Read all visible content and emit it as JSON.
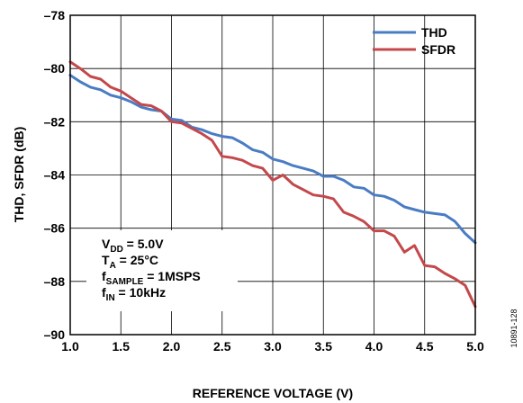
{
  "chart_data": {
    "type": "line",
    "xlabel": "REFERENCE VOLTAGE (V)",
    "ylabel": "THD, SFDR (dB)",
    "xlim": [
      1.0,
      5.0
    ],
    "ylim": [
      -90,
      -78
    ],
    "x_ticks": [
      "1.0",
      "1.5",
      "2.0",
      "2.5",
      "3.0",
      "3.5",
      "4.0",
      "4.5",
      "5.0"
    ],
    "y_ticks": [
      "–78",
      "–80",
      "–82",
      "–84",
      "–86",
      "–88",
      "–90"
    ],
    "grid": true,
    "legend_position": "top-right",
    "series": [
      {
        "name": "THD",
        "color": "#4a7cc4",
        "x": [
          1.0,
          1.1,
          1.2,
          1.3,
          1.4,
          1.5,
          1.6,
          1.7,
          1.8,
          1.9,
          2.0,
          2.1,
          2.2,
          2.3,
          2.4,
          2.5,
          2.6,
          2.7,
          2.8,
          2.9,
          3.0,
          3.1,
          3.2,
          3.3,
          3.4,
          3.5,
          3.6,
          3.7,
          3.8,
          3.9,
          4.0,
          4.1,
          4.2,
          4.3,
          4.4,
          4.5,
          4.6,
          4.7,
          4.8,
          4.9,
          5.0
        ],
        "values": [
          -80.25,
          -80.5,
          -80.7,
          -80.8,
          -81.0,
          -81.1,
          -81.25,
          -81.45,
          -81.55,
          -81.6,
          -81.9,
          -81.95,
          -82.2,
          -82.3,
          -82.45,
          -82.55,
          -82.6,
          -82.8,
          -83.05,
          -83.15,
          -83.4,
          -83.5,
          -83.65,
          -83.75,
          -83.85,
          -84.05,
          -84.05,
          -84.2,
          -84.45,
          -84.5,
          -84.75,
          -84.8,
          -84.95,
          -85.2,
          -85.3,
          -85.4,
          -85.45,
          -85.5,
          -85.75,
          -86.2,
          -86.55
        ]
      },
      {
        "name": "SFDR",
        "color": "#c4484b",
        "x": [
          1.0,
          1.1,
          1.2,
          1.3,
          1.4,
          1.5,
          1.6,
          1.7,
          1.8,
          1.9,
          2.0,
          2.1,
          2.2,
          2.3,
          2.4,
          2.5,
          2.6,
          2.7,
          2.8,
          2.9,
          3.0,
          3.1,
          3.2,
          3.3,
          3.4,
          3.5,
          3.6,
          3.7,
          3.8,
          3.9,
          4.0,
          4.1,
          4.2,
          4.3,
          4.4,
          4.5,
          4.6,
          4.7,
          4.8,
          4.9,
          5.0
        ],
        "values": [
          -79.75,
          -80.0,
          -80.3,
          -80.4,
          -80.7,
          -80.85,
          -81.1,
          -81.35,
          -81.4,
          -81.6,
          -82.0,
          -82.05,
          -82.25,
          -82.45,
          -82.7,
          -83.3,
          -83.35,
          -83.45,
          -83.65,
          -83.75,
          -84.2,
          -84.0,
          -84.35,
          -84.55,
          -84.75,
          -84.8,
          -84.9,
          -85.4,
          -85.55,
          -85.75,
          -86.1,
          -86.1,
          -86.3,
          -86.9,
          -86.65,
          -87.4,
          -87.45,
          -87.7,
          -87.9,
          -88.15,
          -88.95
        ]
      }
    ],
    "annotations": {
      "vdd": {
        "main": "V",
        "sub": "DD",
        "rest": " = 5.0V"
      },
      "ta": {
        "main": "T",
        "sub": "A",
        "rest": " = 25°C"
      },
      "fsample": {
        "main": "f",
        "sub": "SAMPLE",
        "rest": " = 1MSPS"
      },
      "fin": {
        "main": "f",
        "sub": "IN",
        "rest": " = 10kHz"
      }
    },
    "figure_id": "10891-128"
  }
}
